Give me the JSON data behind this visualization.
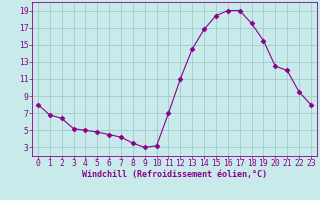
{
  "x": [
    0,
    1,
    2,
    3,
    4,
    5,
    6,
    7,
    8,
    9,
    10,
    11,
    12,
    13,
    14,
    15,
    16,
    17,
    18,
    19,
    20,
    21,
    22,
    23
  ],
  "y": [
    8.0,
    6.8,
    6.4,
    5.2,
    5.0,
    4.8,
    4.5,
    4.2,
    3.5,
    3.0,
    3.2,
    7.0,
    11.0,
    14.5,
    16.8,
    18.4,
    19.0,
    19.0,
    17.5,
    15.5,
    12.5,
    12.0,
    9.5,
    8.0
  ],
  "line_color": "#8b008b",
  "marker": "D",
  "marker_size": 2.5,
  "bg_color": "#c8eaea",
  "grid_color": "#a0cccc",
  "xlabel": "Windchill (Refroidissement éolien,°C)",
  "ylabel": "",
  "xlim": [
    -0.5,
    23.5
  ],
  "ylim": [
    2.0,
    20.0
  ],
  "yticks": [
    3,
    5,
    7,
    9,
    11,
    13,
    15,
    17,
    19
  ],
  "xticks": [
    0,
    1,
    2,
    3,
    4,
    5,
    6,
    7,
    8,
    9,
    10,
    11,
    12,
    13,
    14,
    15,
    16,
    17,
    18,
    19,
    20,
    21,
    22,
    23
  ],
  "label_fontsize": 6.0,
  "tick_fontsize": 5.8
}
